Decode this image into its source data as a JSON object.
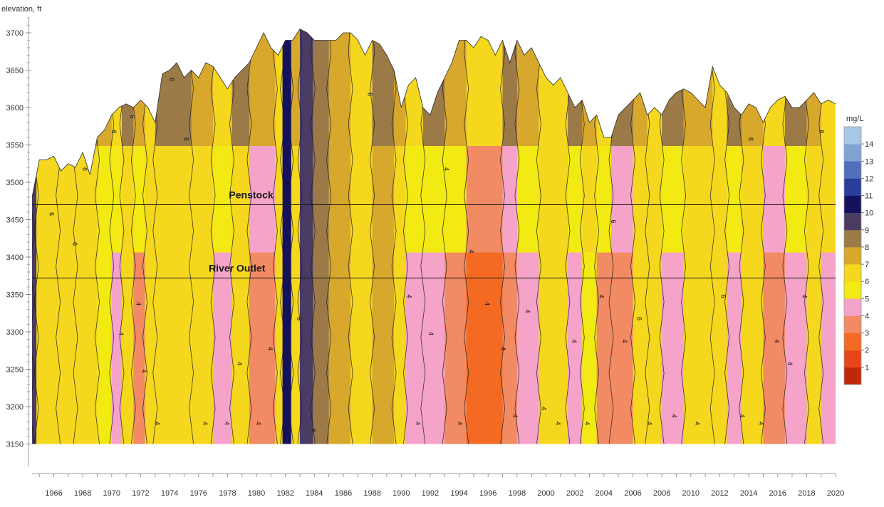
{
  "chart_data": {
    "type": "heatmap",
    "title": "",
    "ylabel": "elevation, ft",
    "xlabel": "",
    "xlim": [
      1965,
      2020.5
    ],
    "ylim": [
      3120,
      3720
    ],
    "x_ticks": [
      "1966",
      "1968",
      "1970",
      "1972",
      "1974",
      "1976",
      "1978",
      "1980",
      "1982",
      "1984",
      "1986",
      "1988",
      "1990",
      "1992",
      "1994",
      "1996",
      "1998",
      "2000",
      "2002",
      "2004",
      "2006",
      "2008",
      "2010",
      "2012",
      "2014",
      "2016",
      "2018",
      "2020"
    ],
    "y_ticks": [
      "3150",
      "3200",
      "3250",
      "3300",
      "3350",
      "3400",
      "3450",
      "3500",
      "3550",
      "3600",
      "3650",
      "3700"
    ],
    "bottom_elevation": 3150,
    "colorbar": {
      "title": "mg/L",
      "levels": [
        "1",
        "2",
        "3",
        "4",
        "5",
        "6",
        "7",
        "8",
        "9",
        "10",
        "11",
        "12",
        "13",
        "14"
      ],
      "colors": [
        "#c0280a",
        "#e8461a",
        "#f46a22",
        "#f28a63",
        "#f5a3c8",
        "#f2ea12",
        "#f5d81e",
        "#d8a82c",
        "#9b7a48",
        "#4a3b62",
        "#14125e",
        "#2a3d9a",
        "#4f6fba",
        "#7fa4d4",
        "#a8c7e6"
      ]
    },
    "contour_labels": [
      "6",
      "4"
    ],
    "reference_lines": [
      {
        "name": "Penstock",
        "elevation": 3470
      },
      {
        "name": "River Outlet",
        "elevation": 3372
      }
    ],
    "surface_profile": [
      [
        1965.0,
        3480
      ],
      [
        1965.5,
        3530
      ],
      [
        1966.0,
        3530
      ],
      [
        1966.5,
        3535
      ],
      [
        1967.0,
        3515
      ],
      [
        1967.5,
        3525
      ],
      [
        1968.0,
        3520
      ],
      [
        1968.5,
        3540
      ],
      [
        1969.0,
        3510
      ],
      [
        1969.5,
        3560
      ],
      [
        1970.0,
        3570
      ],
      [
        1970.5,
        3590
      ],
      [
        1971.0,
        3600
      ],
      [
        1971.5,
        3605
      ],
      [
        1972.0,
        3600
      ],
      [
        1972.5,
        3610
      ],
      [
        1973.0,
        3600
      ],
      [
        1973.5,
        3580
      ],
      [
        1974.0,
        3645
      ],
      [
        1974.5,
        3650
      ],
      [
        1975.0,
        3660
      ],
      [
        1975.5,
        3640
      ],
      [
        1976.0,
        3650
      ],
      [
        1976.5,
        3640
      ],
      [
        1977.0,
        3660
      ],
      [
        1977.5,
        3655
      ],
      [
        1978.0,
        3640
      ],
      [
        1978.5,
        3625
      ],
      [
        1979.0,
        3640
      ],
      [
        1979.5,
        3650
      ],
      [
        1980.0,
        3660
      ],
      [
        1980.5,
        3680
      ],
      [
        1981.0,
        3700
      ],
      [
        1981.5,
        3680
      ],
      [
        1982.0,
        3670
      ],
      [
        1982.5,
        3690
      ],
      [
        1983.0,
        3690
      ],
      [
        1983.5,
        3705
      ],
      [
        1984.0,
        3700
      ],
      [
        1984.5,
        3690
      ],
      [
        1985.0,
        3690
      ],
      [
        1985.5,
        3690
      ],
      [
        1986.0,
        3690
      ],
      [
        1986.5,
        3700
      ],
      [
        1987.0,
        3700
      ],
      [
        1987.5,
        3690
      ],
      [
        1988.0,
        3670
      ],
      [
        1988.5,
        3690
      ],
      [
        1989.0,
        3685
      ],
      [
        1989.5,
        3670
      ],
      [
        1990.0,
        3650
      ],
      [
        1990.5,
        3600
      ],
      [
        1991.0,
        3630
      ],
      [
        1991.5,
        3640
      ],
      [
        1992.0,
        3600
      ],
      [
        1992.5,
        3590
      ],
      [
        1993.0,
        3620
      ],
      [
        1993.5,
        3640
      ],
      [
        1994.0,
        3660
      ],
      [
        1994.5,
        3690
      ],
      [
        1995.0,
        3690
      ],
      [
        1995.5,
        3680
      ],
      [
        1996.0,
        3695
      ],
      [
        1996.5,
        3690
      ],
      [
        1997.0,
        3670
      ],
      [
        1997.5,
        3690
      ],
      [
        1998.0,
        3660
      ],
      [
        1998.5,
        3690
      ],
      [
        1999.0,
        3670
      ],
      [
        1999.5,
        3680
      ],
      [
        2000.0,
        3660
      ],
      [
        2000.5,
        3640
      ],
      [
        2001.0,
        3630
      ],
      [
        2001.5,
        3640
      ],
      [
        2002.0,
        3620
      ],
      [
        2002.5,
        3600
      ],
      [
        2003.0,
        3610
      ],
      [
        2003.5,
        3580
      ],
      [
        2004.0,
        3590
      ],
      [
        2004.5,
        3560
      ],
      [
        2005.0,
        3560
      ],
      [
        2005.5,
        3590
      ],
      [
        2006.0,
        3600
      ],
      [
        2006.5,
        3610
      ],
      [
        2007.0,
        3620
      ],
      [
        2007.5,
        3590
      ],
      [
        2008.0,
        3600
      ],
      [
        2008.5,
        3590
      ],
      [
        2009.0,
        3610
      ],
      [
        2009.5,
        3620
      ],
      [
        2010.0,
        3625
      ],
      [
        2010.5,
        3620
      ],
      [
        2011.0,
        3610
      ],
      [
        2011.5,
        3600
      ],
      [
        2012.0,
        3655
      ],
      [
        2012.5,
        3630
      ],
      [
        2013.0,
        3620
      ],
      [
        2013.5,
        3600
      ],
      [
        2014.0,
        3590
      ],
      [
        2014.5,
        3605
      ],
      [
        2015.0,
        3600
      ],
      [
        2015.5,
        3580
      ],
      [
        2016.0,
        3600
      ],
      [
        2016.5,
        3610
      ],
      [
        2017.0,
        3615
      ],
      [
        2017.5,
        3600
      ],
      [
        2018.0,
        3600
      ],
      [
        2018.5,
        3610
      ],
      [
        2019.0,
        3620
      ],
      [
        2019.5,
        3605
      ],
      [
        2020.0,
        3610
      ],
      [
        2020.5,
        3605
      ]
    ],
    "bands": [
      [
        1965.0,
        1965.3,
        9.5
      ],
      [
        1965.3,
        1966.8,
        6
      ],
      [
        1966.8,
        1968.0,
        6.8
      ],
      [
        1968.0,
        1969.5,
        6
      ],
      [
        1969.5,
        1970.5,
        5.8
      ],
      [
        1970.5,
        1971.2,
        4.5
      ],
      [
        1971.2,
        1972.0,
        6.2
      ],
      [
        1972.0,
        1972.8,
        3.8
      ],
      [
        1972.8,
        1973.5,
        6
      ],
      [
        1973.5,
        1976.0,
        6.2
      ],
      [
        1976.0,
        1977.5,
        6.5
      ],
      [
        1977.5,
        1978.8,
        4.5
      ],
      [
        1978.8,
        1980.0,
        6
      ],
      [
        1980.0,
        1981.8,
        3.2
      ],
      [
        1981.8,
        1982.3,
        6
      ],
      [
        1982.3,
        1982.9,
        10.2
      ],
      [
        1982.9,
        1983.5,
        6.5
      ],
      [
        1983.5,
        1984.4,
        9.2
      ],
      [
        1984.4,
        1985.5,
        8.2
      ],
      [
        1985.5,
        1987.0,
        7.5
      ],
      [
        1987.0,
        1988.5,
        6.2
      ],
      [
        1988.5,
        1990.0,
        7
      ],
      [
        1990.0,
        1990.8,
        6
      ],
      [
        1990.8,
        1992.0,
        4.5
      ],
      [
        1992.0,
        1993.5,
        4.2
      ],
      [
        1993.5,
        1995.0,
        3.8
      ],
      [
        1995.0,
        1997.5,
        2.5
      ],
      [
        1997.5,
        1998.5,
        3.5
      ],
      [
        1998.5,
        2000.0,
        4.5
      ],
      [
        2000.0,
        2002.0,
        6
      ],
      [
        2002.0,
        2003.0,
        4.5
      ],
      [
        2003.0,
        2004.0,
        5
      ],
      [
        2004.0,
        2005.0,
        3.8
      ],
      [
        2005.0,
        2006.5,
        3.2
      ],
      [
        2006.5,
        2007.5,
        6
      ],
      [
        2007.5,
        2008.5,
        6.2
      ],
      [
        2008.5,
        2010.0,
        4.5
      ],
      [
        2010.0,
        2012.0,
        6
      ],
      [
        2012.0,
        2013.0,
        6.2
      ],
      [
        2013.0,
        2014.0,
        4.5
      ],
      [
        2014.0,
        2015.5,
        6
      ],
      [
        2015.5,
        2017.0,
        3.6
      ],
      [
        2017.0,
        2018.5,
        4.5
      ],
      [
        2018.5,
        2019.5,
        6
      ],
      [
        2019.5,
        2020.5,
        4.8
      ]
    ],
    "contour_label_points": [
      [
        1966.2,
        3460,
        "6"
      ],
      [
        1967.8,
        3420,
        "6"
      ],
      [
        1968.5,
        3520,
        "6"
      ],
      [
        1970.5,
        3570,
        "6"
      ],
      [
        1971.0,
        3300,
        "4"
      ],
      [
        1971.8,
        3590,
        "6"
      ],
      [
        1972.2,
        3340,
        "4"
      ],
      [
        1972.6,
        3250,
        "4"
      ],
      [
        1973.5,
        3180,
        "4"
      ],
      [
        1974.5,
        3640,
        "6"
      ],
      [
        1975.5,
        3560,
        "6"
      ],
      [
        1976.8,
        3180,
        "4"
      ],
      [
        1978.3,
        3180,
        "4"
      ],
      [
        1979.2,
        3260,
        "4"
      ],
      [
        1980.5,
        3180,
        "4"
      ],
      [
        1981.3,
        3280,
        "4"
      ],
      [
        1982.5,
        3500,
        "6"
      ],
      [
        1983.3,
        3320,
        "6"
      ],
      [
        1984.3,
        3170,
        "6"
      ],
      [
        1988.2,
        3620,
        "6"
      ],
      [
        1990.9,
        3350,
        "4"
      ],
      [
        1991.5,
        3180,
        "4"
      ],
      [
        1992.4,
        3300,
        "4"
      ],
      [
        1993.5,
        3520,
        "4"
      ],
      [
        1994.4,
        3180,
        "4"
      ],
      [
        1995.2,
        3410,
        "4"
      ],
      [
        1996.3,
        3340,
        "4"
      ],
      [
        1997.4,
        3280,
        "4"
      ],
      [
        1998.2,
        3190,
        "4"
      ],
      [
        1999.1,
        3330,
        "4"
      ],
      [
        2000.2,
        3200,
        "4"
      ],
      [
        2001.2,
        3180,
        "4"
      ],
      [
        2002.3,
        3290,
        "4"
      ],
      [
        2003.2,
        3180,
        "4"
      ],
      [
        2004.2,
        3350,
        "4"
      ],
      [
        2005.0,
        3450,
        "6"
      ],
      [
        2005.8,
        3290,
        "4"
      ],
      [
        2006.8,
        3320,
        "6"
      ],
      [
        2007.5,
        3180,
        "4"
      ],
      [
        2009.2,
        3190,
        "4"
      ],
      [
        2010.8,
        3180,
        "4"
      ],
      [
        2012.6,
        3350,
        "6"
      ],
      [
        2013.9,
        3190,
        "4"
      ],
      [
        2014.5,
        3560,
        "6"
      ],
      [
        2015.2,
        3180,
        "4"
      ],
      [
        2016.3,
        3290,
        "4"
      ],
      [
        2017.2,
        3260,
        "4"
      ],
      [
        2018.2,
        3350,
        "4"
      ],
      [
        2019.4,
        3570,
        "6"
      ]
    ]
  }
}
